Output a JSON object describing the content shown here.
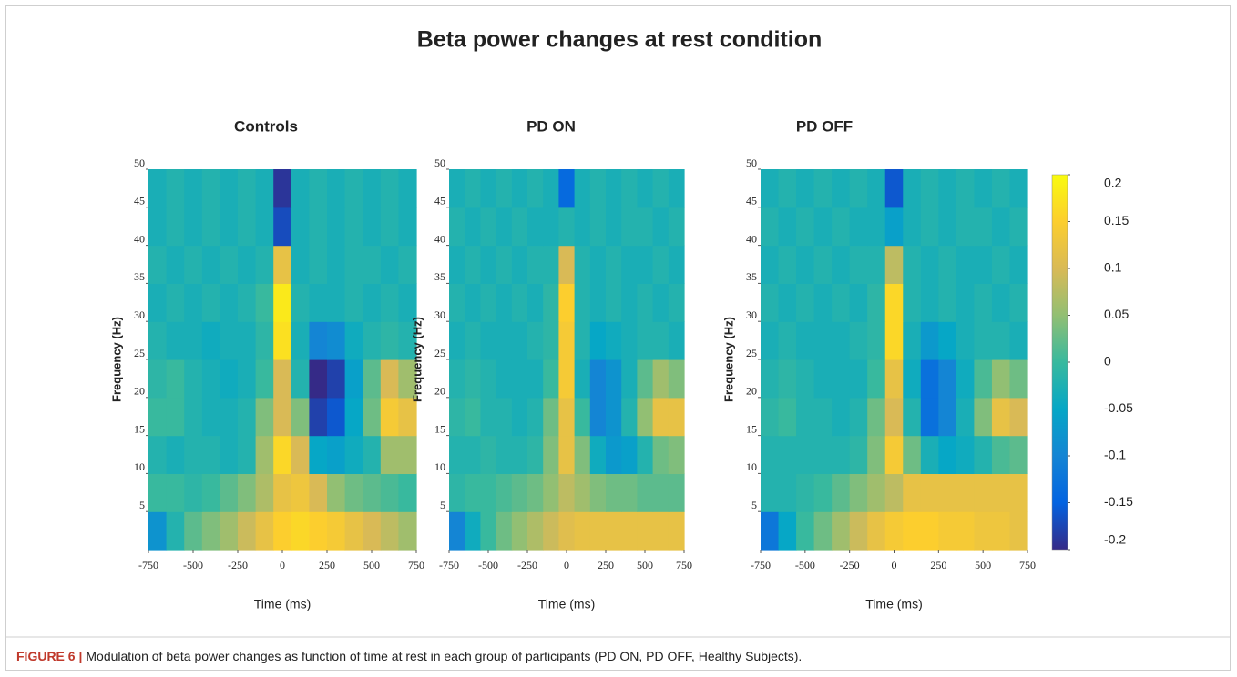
{
  "title": "Beta power changes at rest condition",
  "caption": {
    "label": "FIGURE 6 |",
    "text": "Modulation of beta power changes as function of time at rest in each group of participants (PD ON, PD OFF, Healthy Subjects)."
  },
  "colorbar": {
    "lim": [
      -0.2,
      0.2
    ],
    "ticks": [
      -0.2,
      -0.15,
      -0.1,
      -0.05,
      0,
      0.05,
      0.1,
      0.15,
      0.2
    ],
    "colors": [
      "#352a87",
      "#0363e1",
      "#1485d4",
      "#06a7c6",
      "#38b99e",
      "#92bf73",
      "#d9ba56",
      "#fcce2e",
      "#f9fb0e"
    ]
  },
  "chart_data": [
    {
      "type": "heatmap",
      "title": "Controls",
      "xlabel": "Time (ms)",
      "ylabel": "Frequency (Hz)",
      "xlim": [
        -750,
        750
      ],
      "ylim": [
        0,
        50
      ],
      "xticks": [
        -750,
        -500,
        -250,
        0,
        250,
        500,
        750
      ],
      "yticks": [
        5,
        10,
        15,
        20,
        25,
        30,
        35,
        40,
        45,
        50
      ],
      "x": [
        -700,
        -600,
        -500,
        -400,
        -300,
        -200,
        -100,
        0,
        100,
        200,
        300,
        400,
        500,
        600,
        700
      ],
      "y": [
        2.5,
        7.5,
        12.5,
        17.5,
        22.5,
        27.5,
        32.5,
        37.5,
        42.5,
        47.5
      ],
      "values": [
        [
          -0.08,
          -0.02,
          0.02,
          0.04,
          0.06,
          0.09,
          0.12,
          0.15,
          0.16,
          0.15,
          0.14,
          0.12,
          0.1,
          0.08,
          0.06
        ],
        [
          0.0,
          0.0,
          -0.01,
          0.0,
          0.02,
          0.04,
          0.07,
          0.12,
          0.13,
          0.1,
          0.05,
          0.03,
          0.02,
          0.01,
          0.0
        ],
        [
          -0.02,
          -0.03,
          -0.02,
          -0.02,
          -0.03,
          -0.02,
          0.06,
          0.16,
          0.1,
          -0.05,
          -0.06,
          -0.04,
          -0.02,
          0.06,
          0.06
        ],
        [
          0.0,
          0.0,
          -0.02,
          -0.03,
          -0.03,
          -0.02,
          0.04,
          0.1,
          0.04,
          -0.18,
          -0.16,
          -0.05,
          0.03,
          0.14,
          0.12
        ],
        [
          -0.01,
          0.0,
          -0.02,
          -0.03,
          -0.04,
          -0.03,
          0.0,
          0.1,
          -0.02,
          -0.2,
          -0.18,
          -0.06,
          0.02,
          0.1,
          0.06
        ],
        [
          -0.02,
          -0.03,
          -0.03,
          -0.04,
          -0.03,
          -0.03,
          -0.01,
          0.17,
          -0.03,
          -0.1,
          -0.09,
          -0.04,
          -0.02,
          -0.01,
          -0.02
        ],
        [
          -0.03,
          -0.02,
          -0.03,
          -0.02,
          -0.03,
          -0.02,
          0.0,
          0.18,
          -0.02,
          -0.03,
          -0.03,
          -0.02,
          -0.03,
          -0.02,
          -0.03
        ],
        [
          -0.02,
          -0.03,
          -0.02,
          -0.03,
          -0.02,
          -0.03,
          -0.02,
          0.12,
          -0.03,
          -0.02,
          -0.03,
          -0.02,
          -0.02,
          -0.03,
          -0.02
        ],
        [
          -0.03,
          -0.02,
          -0.03,
          -0.02,
          -0.03,
          -0.02,
          -0.03,
          -0.17,
          -0.03,
          -0.02,
          -0.03,
          -0.02,
          -0.03,
          -0.02,
          -0.03
        ],
        [
          -0.03,
          -0.02,
          -0.03,
          -0.02,
          -0.03,
          -0.02,
          -0.03,
          -0.19,
          -0.03,
          -0.02,
          -0.03,
          -0.02,
          -0.03,
          -0.02,
          -0.03
        ]
      ]
    },
    {
      "type": "heatmap",
      "title": "PD ON",
      "xlabel": "Time (ms)",
      "ylabel": "Frequency (Hz)",
      "xlim": [
        -750,
        750
      ],
      "ylim": [
        0,
        50
      ],
      "xticks": [
        -750,
        -500,
        -250,
        0,
        250,
        500,
        750
      ],
      "yticks": [
        5,
        10,
        15,
        20,
        25,
        30,
        35,
        40,
        45,
        50
      ],
      "x": [
        -700,
        -600,
        -500,
        -400,
        -300,
        -200,
        -100,
        0,
        100,
        200,
        300,
        400,
        500,
        600,
        700
      ],
      "y": [
        2.5,
        7.5,
        12.5,
        17.5,
        22.5,
        27.5,
        32.5,
        37.5,
        42.5,
        47.5
      ],
      "values": [
        [
          -0.1,
          -0.04,
          0.0,
          0.03,
          0.05,
          0.07,
          0.09,
          0.11,
          0.12,
          0.12,
          0.12,
          0.12,
          0.12,
          0.12,
          0.12
        ],
        [
          -0.01,
          0.0,
          0.0,
          0.01,
          0.02,
          0.03,
          0.05,
          0.08,
          0.06,
          0.04,
          0.03,
          0.03,
          0.02,
          0.02,
          0.02
        ],
        [
          -0.02,
          -0.02,
          -0.01,
          -0.02,
          -0.02,
          -0.01,
          0.04,
          0.12,
          0.04,
          -0.04,
          -0.07,
          -0.06,
          -0.02,
          0.03,
          0.04
        ],
        [
          -0.01,
          0.0,
          -0.02,
          -0.02,
          -0.03,
          -0.02,
          0.03,
          0.12,
          0.0,
          -0.1,
          -0.08,
          -0.02,
          0.05,
          0.12,
          0.12
        ],
        [
          -0.02,
          -0.01,
          -0.02,
          -0.03,
          -0.03,
          -0.03,
          0.0,
          0.14,
          -0.03,
          -0.1,
          -0.08,
          -0.03,
          0.02,
          0.06,
          0.04
        ],
        [
          -0.03,
          -0.02,
          -0.03,
          -0.03,
          -0.03,
          -0.02,
          -0.01,
          0.14,
          -0.02,
          -0.05,
          -0.04,
          -0.03,
          -0.02,
          -0.02,
          -0.03
        ],
        [
          -0.02,
          -0.03,
          -0.02,
          -0.03,
          -0.02,
          -0.03,
          -0.01,
          0.15,
          -0.02,
          -0.03,
          -0.02,
          -0.03,
          -0.02,
          -0.03,
          -0.02
        ],
        [
          -0.03,
          -0.02,
          -0.03,
          -0.02,
          -0.03,
          -0.02,
          -0.02,
          0.1,
          -0.02,
          -0.03,
          -0.02,
          -0.03,
          -0.03,
          -0.02,
          -0.03
        ],
        [
          -0.02,
          -0.03,
          -0.02,
          -0.03,
          -0.02,
          -0.03,
          -0.03,
          -0.02,
          -0.03,
          -0.02,
          -0.03,
          -0.02,
          -0.02,
          -0.03,
          -0.02
        ],
        [
          -0.03,
          -0.02,
          -0.03,
          -0.02,
          -0.03,
          -0.02,
          -0.03,
          -0.14,
          -0.03,
          -0.02,
          -0.03,
          -0.02,
          -0.03,
          -0.02,
          -0.03
        ]
      ]
    },
    {
      "type": "heatmap",
      "title": "PD OFF",
      "xlabel": "Time (ms)",
      "ylabel": "Frequency (Hz)",
      "xlim": [
        -750,
        750
      ],
      "ylim": [
        0,
        50
      ],
      "xticks": [
        -750,
        -500,
        -250,
        0,
        250,
        500,
        750
      ],
      "yticks": [
        5,
        10,
        15,
        20,
        25,
        30,
        35,
        40,
        45,
        50
      ],
      "x": [
        -700,
        -600,
        -500,
        -400,
        -300,
        -200,
        -100,
        0,
        100,
        200,
        300,
        400,
        500,
        600,
        700
      ],
      "y": [
        2.5,
        7.5,
        12.5,
        17.5,
        22.5,
        27.5,
        32.5,
        37.5,
        42.5,
        47.5
      ],
      "values": [
        [
          -0.12,
          -0.05,
          0.0,
          0.03,
          0.06,
          0.09,
          0.12,
          0.14,
          0.15,
          0.15,
          0.14,
          0.14,
          0.13,
          0.13,
          0.12
        ],
        [
          -0.02,
          -0.02,
          -0.01,
          0.0,
          0.02,
          0.04,
          0.06,
          0.08,
          0.12,
          0.12,
          0.12,
          0.12,
          0.12,
          0.12,
          0.12
        ],
        [
          -0.02,
          -0.02,
          -0.02,
          -0.02,
          -0.02,
          -0.01,
          0.04,
          0.14,
          0.03,
          -0.03,
          -0.05,
          -0.04,
          -0.02,
          0.01,
          0.02
        ],
        [
          -0.01,
          0.0,
          -0.02,
          -0.02,
          -0.03,
          -0.02,
          0.03,
          0.1,
          -0.02,
          -0.13,
          -0.1,
          -0.03,
          0.04,
          0.12,
          0.1
        ],
        [
          -0.02,
          -0.01,
          -0.02,
          -0.03,
          -0.03,
          -0.03,
          0.0,
          0.12,
          -0.04,
          -0.13,
          -0.1,
          -0.04,
          0.01,
          0.05,
          0.03
        ],
        [
          -0.03,
          -0.02,
          -0.03,
          -0.03,
          -0.03,
          -0.02,
          -0.01,
          0.16,
          -0.03,
          -0.07,
          -0.05,
          -0.03,
          -0.02,
          -0.02,
          -0.03
        ],
        [
          -0.02,
          -0.03,
          -0.02,
          -0.03,
          -0.02,
          -0.03,
          -0.01,
          0.16,
          -0.02,
          -0.03,
          -0.02,
          -0.03,
          -0.02,
          -0.03,
          -0.02
        ],
        [
          -0.03,
          -0.02,
          -0.03,
          -0.02,
          -0.03,
          -0.02,
          -0.02,
          0.08,
          -0.02,
          -0.03,
          -0.02,
          -0.03,
          -0.03,
          -0.02,
          -0.03
        ],
        [
          -0.02,
          -0.03,
          -0.02,
          -0.03,
          -0.02,
          -0.03,
          -0.03,
          -0.06,
          -0.03,
          -0.02,
          -0.03,
          -0.02,
          -0.02,
          -0.03,
          -0.02
        ],
        [
          -0.03,
          -0.02,
          -0.03,
          -0.02,
          -0.03,
          -0.02,
          -0.03,
          -0.16,
          -0.03,
          -0.02,
          -0.03,
          -0.02,
          -0.03,
          -0.02,
          -0.03
        ]
      ]
    }
  ]
}
